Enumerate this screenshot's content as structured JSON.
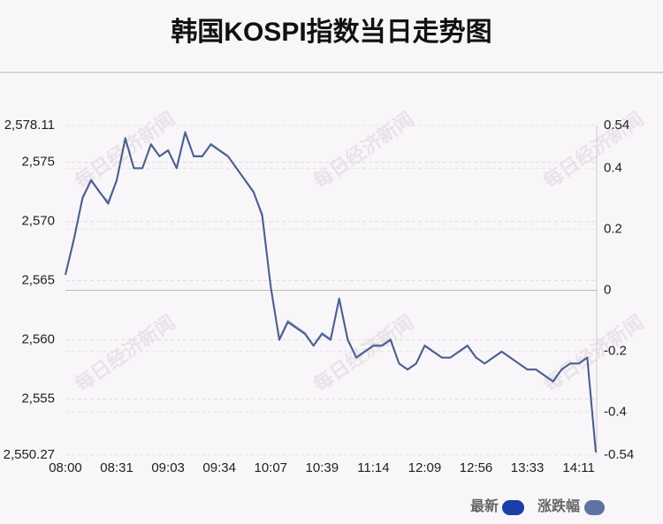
{
  "chart_data": {
    "type": "line",
    "title": "韩国KOSPI指数当日走势图",
    "watermark": "每日经济新闻",
    "categories": [
      "08:00",
      null,
      null,
      null,
      null,
      null,
      "08:31",
      null,
      null,
      null,
      null,
      null,
      "09:03",
      null,
      null,
      null,
      null,
      null,
      "09:34",
      null,
      null,
      null,
      null,
      null,
      "10:07",
      null,
      null,
      null,
      null,
      null,
      "10:39",
      null,
      null,
      null,
      null,
      null,
      "11:14",
      null,
      null,
      null,
      null,
      null,
      "12:09",
      null,
      null,
      null,
      null,
      null,
      "12:56",
      null,
      null,
      null,
      null,
      null,
      "13:33",
      null,
      null,
      null,
      null,
      null,
      "14:11",
      null,
      null
    ],
    "series": [
      {
        "name": "最新",
        "color": "#1a3fa8",
        "line_color": "#4a5f8e",
        "values": [
          2565.5,
          2568.5,
          2572,
          2573.5,
          2572.5,
          2571.5,
          2573.5,
          2577,
          2574.5,
          2574.5,
          2576.5,
          2575.5,
          2576,
          2574.5,
          2577.5,
          2575.5,
          2575.5,
          2576.5,
          2576,
          2575.5,
          2574.5,
          2573.5,
          2572.5,
          2570.5,
          2564.5,
          2560,
          2561.5,
          2561,
          2560.5,
          2559.5,
          2560.5,
          2560,
          2563.5,
          2560,
          2558.5,
          2559,
          2559.5,
          2559.5,
          2560,
          2558,
          2557.5,
          2558,
          2559.5,
          2559,
          2558.5,
          2558.5,
          2559,
          2559.5,
          2558.5,
          2558,
          2558.5,
          2559,
          2558.5,
          2558,
          2557.5,
          2557.5,
          2557,
          2556.5,
          2557.5,
          2558,
          2558,
          2558.5,
          2550.5
        ]
      },
      {
        "name": "涨跌幅",
        "color": "#5f73a0",
        "axis": "y2",
        "values": [
          0.05,
          0.17,
          0.3,
          0.36,
          0.32,
          0.29,
          0.36,
          0.5,
          0.4,
          0.4,
          0.48,
          0.44,
          0.46,
          0.4,
          0.52,
          0.44,
          0.44,
          0.48,
          0.46,
          0.44,
          0.4,
          0.36,
          0.32,
          0.25,
          0.01,
          -0.16,
          -0.1,
          -0.12,
          -0.14,
          -0.18,
          -0.14,
          -0.16,
          -0.03,
          -0.16,
          -0.22,
          -0.2,
          -0.18,
          -0.18,
          -0.16,
          -0.24,
          -0.26,
          -0.24,
          -0.18,
          -0.2,
          -0.22,
          -0.22,
          -0.2,
          -0.18,
          -0.22,
          -0.24,
          -0.22,
          -0.2,
          -0.22,
          -0.24,
          -0.26,
          -0.26,
          -0.28,
          -0.3,
          -0.26,
          -0.24,
          -0.24,
          -0.22,
          -0.53
        ]
      }
    ],
    "ylim": [
      2550.27,
      2578.11
    ],
    "yticks": [
      {
        "value": 2550.27,
        "label": "2,550.27"
      },
      {
        "value": 2555,
        "label": "2,555"
      },
      {
        "value": 2560,
        "label": "2,560"
      },
      {
        "value": 2565,
        "label": "2,565"
      },
      {
        "value": 2570,
        "label": "2,570"
      },
      {
        "value": 2575,
        "label": "2,575"
      },
      {
        "value": 2578.11,
        "label": "2,578.11"
      }
    ],
    "y2lim": [
      -0.54,
      0.54
    ],
    "y2ticks": [
      -0.54,
      -0.4,
      -0.2,
      0,
      0.2,
      0.4,
      0.54
    ],
    "grid": true
  }
}
